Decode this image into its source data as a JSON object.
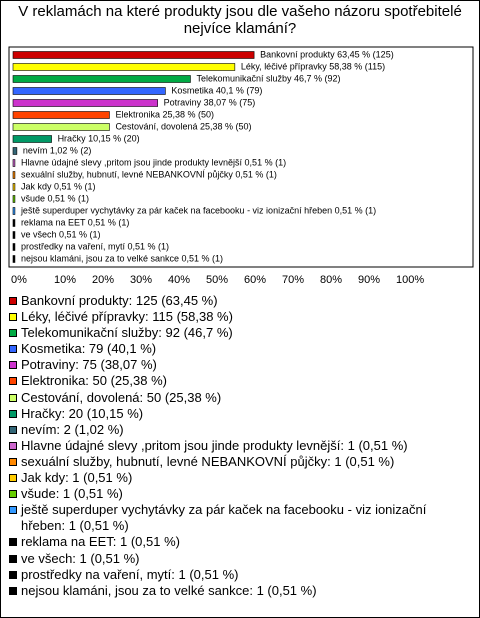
{
  "chart_data": {
    "type": "barh",
    "title": "V reklamách na které produkty jsou dle vašeho názoru spotřebitelé nejvíce klamání?",
    "values": [
      63.45,
      58.38,
      46.7,
      40.1,
      38.07,
      25.38,
      25.38,
      10.15,
      1.02,
      0.51,
      0.51,
      0.51,
      0.51,
      0.51,
      0.51,
      0.51,
      0.51,
      0.51
    ],
    "value_labels": [
      "Bankovní produkty 63,45 % (125)",
      "Léky, léčivé přípravky 58,38 % (115)",
      "Telekomunikační služby 46,7 % (92)",
      "Kosmetika 40,1 % (79)",
      "Potraviny 38,07 % (75)",
      "Elektronika 25,38 % (50)",
      "Cestování, dovolená 25,38 % (50)",
      "Hračky 10,15 % (20)",
      "nevím 1,02 % (2)",
      "Hlavne údajné slevy ,pritom jsou jinde produkty levnější 0,51 % (1)",
      "sexuální služby, hubnutí, levné NEBANKOVNÍ půjčky 0,51 % (1)",
      "Jak kdy 0,51 % (1)",
      "všude 0,51 % (1)",
      "ještě superduper vychytávky za pár kaček na facebooku - viz ionizační hřeben 0,51 % (1)",
      "reklama na EET 0,51 % (1)",
      "ve všech 0,51 % (1)",
      "prostředky na vaření, mytí 0,51 % (1)",
      "nejsou klamáni, jsou za to velké sankce 0,51 % (1)"
    ],
    "legend_labels": [
      "Bankovní produkty: 125 (63,45 %)",
      "Léky, léčivé přípravky: 115 (58,38 %)",
      "Telekomunikační služby: 92 (46,7 %)",
      "Kosmetika: 79 (40,1 %)",
      "Potraviny: 75 (38,07 %)",
      "Elektronika: 50 (25,38 %)",
      "Cestování, dovolená: 50 (25,38 %)",
      "Hračky: 20 (10,15 %)",
      "nevím: 2 (1,02 %)",
      "Hlavne údajné slevy ,pritom jsou jinde produkty levnější: 1 (0,51 %)",
      "sexuální služby, hubnutí, levné NEBANKOVNÍ půjčky: 1 (0,51 %)",
      "Jak kdy: 1 (0,51 %)",
      "všude: 1 (0,51 %)",
      "ještě superduper vychytávky za pár kaček na facebooku - viz ionizační hřeben: 1 (0,51 %)",
      "reklama na EET: 1 (0,51 %)",
      "ve všech: 1 (0,51 %)",
      "prostředky na vaření, mytí: 1 (0,51 %)",
      "nejsou klamáni, jsou za to velké sankce: 1 (0,51 %)"
    ],
    "colors": [
      "#cc0000",
      "#ffff00",
      "#00aa44",
      "#3366ff",
      "#cc33cc",
      "#ff4400",
      "#ccff66",
      "#009966",
      "#336677",
      "#cc66cc",
      "#ff8800",
      "#ffcc00",
      "#66cc00",
      "#3399ff",
      "#000000",
      "#000000",
      "#000000",
      "#000000"
    ],
    "xlim": [
      0,
      100
    ],
    "xticks": [
      {
        "value": 0,
        "label": "0%"
      },
      {
        "value": 10,
        "label": "10%"
      },
      {
        "value": 20,
        "label": "20%"
      },
      {
        "value": 30,
        "label": "30%"
      },
      {
        "value": 40,
        "label": "40%"
      },
      {
        "value": 50,
        "label": "50%"
      },
      {
        "value": 60,
        "label": "60%"
      },
      {
        "value": 70,
        "label": "70%"
      },
      {
        "value": 80,
        "label": "80%"
      },
      {
        "value": 90,
        "label": "90%"
      },
      {
        "value": 100,
        "label": "100%"
      }
    ]
  }
}
